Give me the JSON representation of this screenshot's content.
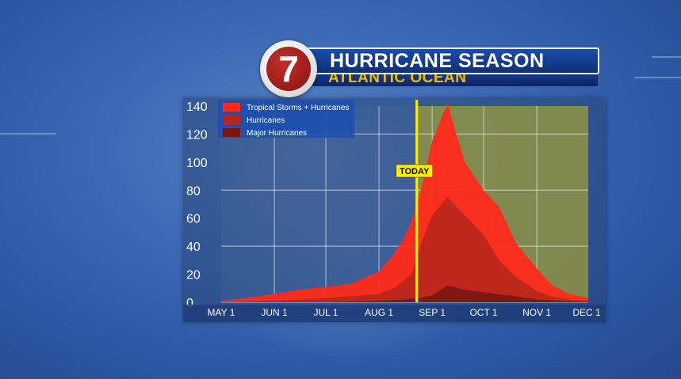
{
  "header": {
    "logo_text": "7",
    "title": "HURRICANE SEASON",
    "subtitle": "ATLANTIC OCEAN"
  },
  "colors": {
    "all_storms": "#ff2a1a",
    "hurricanes": "#b8261d",
    "major": "#7a1615",
    "today_line": "#ffee00",
    "future_shade": "#9a9a3a"
  },
  "chart_data": {
    "type": "area",
    "title": "",
    "xlabel": "",
    "ylabel": "",
    "ylim": [
      0,
      140
    ],
    "yticks": [
      0,
      20,
      40,
      60,
      80,
      100,
      120,
      140
    ],
    "xlim": [
      "May 1",
      "Dec 1"
    ],
    "xticks": [
      "MAY 1",
      "JUN 1",
      "JUL 1",
      "AUG 1",
      "SEP 1",
      "OCT 1",
      "NOV 1",
      "DEC 1"
    ],
    "grid": true,
    "legend_position": "top-left",
    "today_label": "TODAY",
    "today_date": "Aug 23",
    "series": [
      {
        "name": "Tropical Storms + Hurricanes",
        "x": [
          "May 1",
          "May 15",
          "Jun 1",
          "Jun 15",
          "Jul 1",
          "Jul 15",
          "Aug 1",
          "Aug 10",
          "Aug 15",
          "Aug 20",
          "Aug 25",
          "Sep 1",
          "Sep 10",
          "Sep 15",
          "Sep 20",
          "Oct 1",
          "Oct 10",
          "Oct 20",
          "Nov 1",
          "Nov 10",
          "Nov 20",
          "Dec 1"
        ],
        "values": [
          1,
          3,
          6,
          9,
          11,
          13,
          22,
          35,
          45,
          58,
          78,
          115,
          142,
          120,
          100,
          80,
          68,
          42,
          24,
          12,
          6,
          3
        ]
      },
      {
        "name": "Hurricanes",
        "x": [
          "May 1",
          "Jun 1",
          "Jul 1",
          "Aug 1",
          "Aug 10",
          "Aug 20",
          "Aug 25",
          "Sep 1",
          "Sep 10",
          "Sep 20",
          "Oct 1",
          "Oct 10",
          "Oct 20",
          "Nov 1",
          "Nov 10",
          "Nov 20",
          "Dec 1"
        ],
        "values": [
          0,
          1,
          3,
          6,
          10,
          20,
          40,
          62,
          75,
          62,
          48,
          30,
          18,
          8,
          4,
          2,
          1
        ]
      },
      {
        "name": "Major Hurricanes",
        "x": [
          "May 1",
          "Jun 1",
          "Jul 1",
          "Aug 1",
          "Aug 15",
          "Aug 25",
          "Sep 1",
          "Sep 10",
          "Sep 20",
          "Oct 1",
          "Oct 15",
          "Nov 1",
          "Nov 15",
          "Dec 1"
        ],
        "values": [
          0,
          0,
          0,
          1,
          2,
          3,
          5,
          12,
          9,
          7,
          5,
          2,
          1,
          0
        ]
      }
    ]
  }
}
